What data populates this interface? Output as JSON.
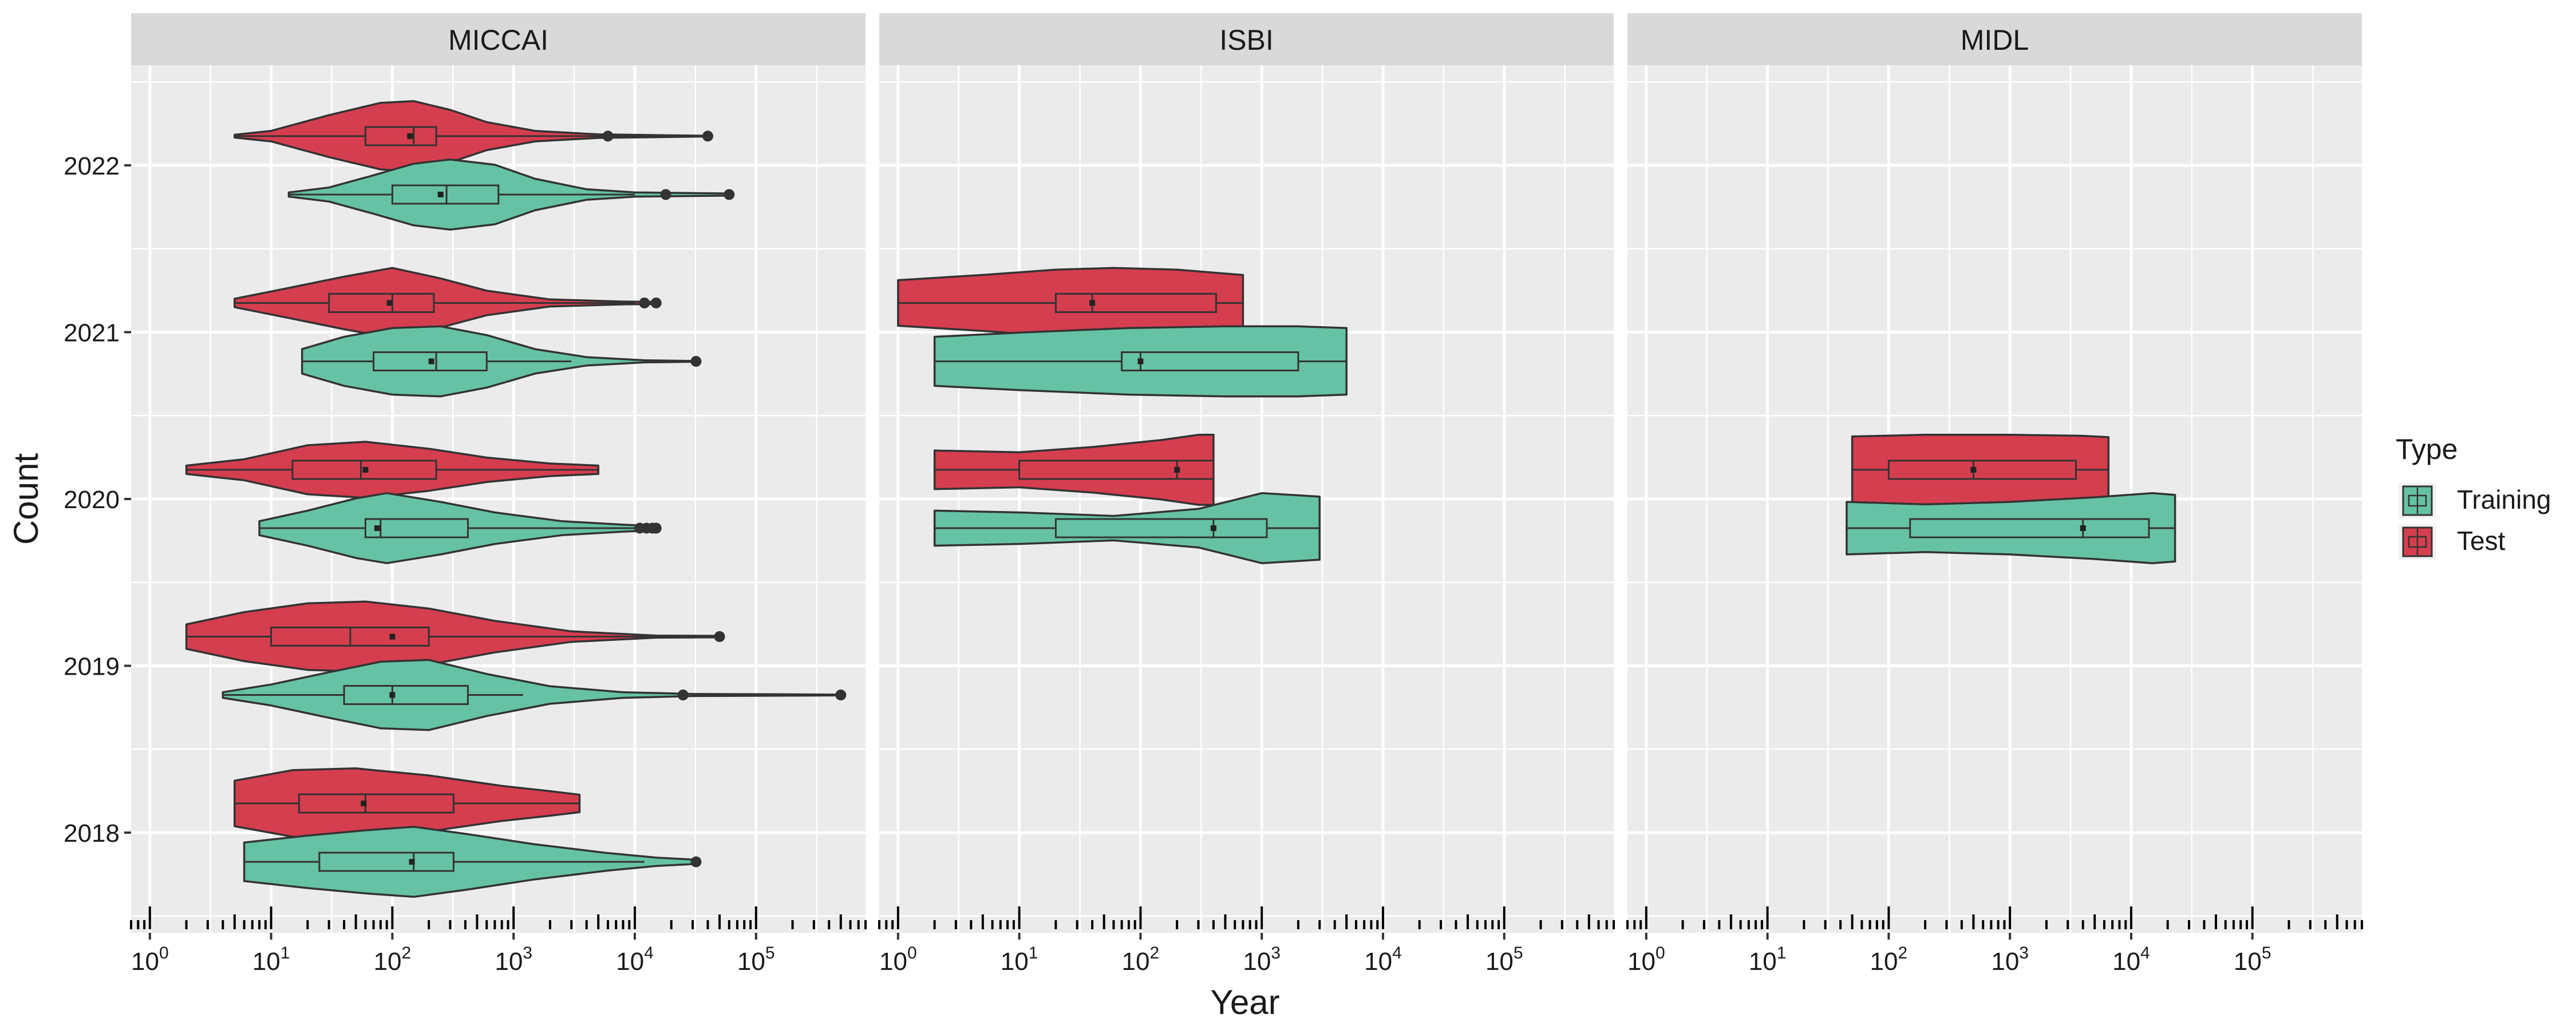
{
  "chart_data": {
    "type": "violin",
    "xlabel": "Year",
    "ylabel": "Count",
    "x_scale": "log10",
    "xlim": [
      0.7,
      800000
    ],
    "x_ticks": [
      1,
      10,
      100,
      1000,
      10000,
      100000
    ],
    "x_tick_labels": [
      {
        "base": "10",
        "exp": "0"
      },
      {
        "base": "10",
        "exp": "1"
      },
      {
        "base": "10",
        "exp": "2"
      },
      {
        "base": "10",
        "exp": "3"
      },
      {
        "base": "10",
        "exp": "4"
      },
      {
        "base": "10",
        "exp": "5"
      }
    ],
    "ylim": [
      2017.4,
      2022.6
    ],
    "y_ticks": [
      "2018",
      "2019",
      "2020",
      "2021",
      "2022"
    ],
    "grid": true,
    "legend": {
      "title": "Type",
      "placement": "right",
      "entries": [
        {
          "name": "Training",
          "color": "#66C2A5"
        },
        {
          "name": "Test",
          "color": "#D53E4F"
        }
      ]
    },
    "panels": [
      {
        "name": "MICCAI",
        "violins": [
          {
            "year": 2022,
            "type": "Test",
            "min": 5,
            "max": 6000,
            "q1": 60,
            "median": 150,
            "q3": 230,
            "mean": 140,
            "whisker_low": 5,
            "whisker_high": 6000,
            "outliers": [
              6000,
              40000
            ],
            "shape": [
              [
                5,
                0.04
              ],
              [
                10,
                0.15
              ],
              [
                30,
                0.6
              ],
              [
                80,
                0.95
              ],
              [
                150,
                1.0
              ],
              [
                300,
                0.75
              ],
              [
                600,
                0.4
              ],
              [
                1500,
                0.15
              ],
              [
                5000,
                0.05
              ],
              [
                40000,
                0.01
              ]
            ]
          },
          {
            "year": 2022,
            "type": "Training",
            "min": 14,
            "max": 60000,
            "q1": 100,
            "median": 280,
            "q3": 750,
            "mean": 250,
            "whisker_low": 14,
            "whisker_high": 10000,
            "outliers": [
              18000,
              60000
            ],
            "shape": [
              [
                14,
                0.06
              ],
              [
                30,
                0.2
              ],
              [
                70,
                0.55
              ],
              [
                150,
                0.88
              ],
              [
                300,
                1.0
              ],
              [
                700,
                0.85
              ],
              [
                1500,
                0.45
              ],
              [
                4000,
                0.15
              ],
              [
                10000,
                0.06
              ],
              [
                60000,
                0.03
              ]
            ]
          },
          {
            "year": 2021,
            "type": "Test",
            "min": 5,
            "max": 15000,
            "q1": 30,
            "median": 100,
            "q3": 220,
            "mean": 95,
            "whisker_low": 5,
            "whisker_high": 10000,
            "outliers": [
              12000,
              15000
            ],
            "shape": [
              [
                5,
                0.12
              ],
              [
                15,
                0.45
              ],
              [
                40,
                0.75
              ],
              [
                100,
                1.0
              ],
              [
                250,
                0.7
              ],
              [
                600,
                0.35
              ],
              [
                2000,
                0.1
              ],
              [
                8000,
                0.04
              ],
              [
                15000,
                0.03
              ]
            ]
          },
          {
            "year": 2021,
            "type": "Training",
            "min": 18,
            "max": 32000,
            "q1": 70,
            "median": 230,
            "q3": 600,
            "mean": 210,
            "whisker_low": 18,
            "whisker_high": 3000,
            "outliers": [
              32000
            ],
            "shape": [
              [
                18,
                0.35
              ],
              [
                40,
                0.7
              ],
              [
                100,
                0.95
              ],
              [
                250,
                1.0
              ],
              [
                600,
                0.75
              ],
              [
                1500,
                0.35
              ],
              [
                4000,
                0.12
              ],
              [
                12000,
                0.03
              ],
              [
                32000,
                0.01
              ]
            ]
          },
          {
            "year": 2020,
            "type": "Test",
            "min": 2,
            "max": 5000,
            "q1": 15,
            "median": 55,
            "q3": 230,
            "mean": 60,
            "whisker_low": 2,
            "whisker_high": 5000,
            "outliers": [],
            "shape": [
              [
                2,
                0.12
              ],
              [
                6,
                0.3
              ],
              [
                20,
                0.7
              ],
              [
                60,
                0.8
              ],
              [
                200,
                0.6
              ],
              [
                600,
                0.35
              ],
              [
                2000,
                0.18
              ],
              [
                5000,
                0.12
              ]
            ]
          },
          {
            "year": 2020,
            "type": "Training",
            "min": 8,
            "max": 15000,
            "q1": 60,
            "median": 80,
            "q3": 420,
            "mean": 75,
            "whisker_low": 8,
            "whisker_high": 10000,
            "outliers": [
              11000,
              12500,
              14000,
              15000
            ],
            "shape": [
              [
                8,
                0.2
              ],
              [
                20,
                0.5
              ],
              [
                50,
                0.85
              ],
              [
                90,
                1.0
              ],
              [
                250,
                0.75
              ],
              [
                700,
                0.45
              ],
              [
                2500,
                0.2
              ],
              [
                8000,
                0.1
              ],
              [
                15000,
                0.06
              ]
            ]
          },
          {
            "year": 2019,
            "type": "Test",
            "min": 2,
            "max": 50000,
            "q1": 10,
            "median": 45,
            "q3": 200,
            "mean": 100,
            "whisker_low": 2,
            "whisker_high": 30000,
            "outliers": [
              50000
            ],
            "shape": [
              [
                2,
                0.35
              ],
              [
                6,
                0.7
              ],
              [
                20,
                0.95
              ],
              [
                60,
                1.0
              ],
              [
                200,
                0.8
              ],
              [
                700,
                0.45
              ],
              [
                3000,
                0.15
              ],
              [
                15000,
                0.03
              ],
              [
                50000,
                0.02
              ]
            ]
          },
          {
            "year": 2019,
            "type": "Training",
            "min": 4,
            "max": 500000,
            "q1": 40,
            "median": 100,
            "q3": 420,
            "mean": 100,
            "whisker_low": 4,
            "whisker_high": 1200,
            "outliers": [
              25000,
              500000
            ],
            "shape": [
              [
                4,
                0.08
              ],
              [
                10,
                0.3
              ],
              [
                30,
                0.65
              ],
              [
                80,
                0.95
              ],
              [
                200,
                1.0
              ],
              [
                600,
                0.6
              ],
              [
                2000,
                0.25
              ],
              [
                8000,
                0.08
              ],
              [
                30000,
                0.03
              ],
              [
                150000,
                0.02
              ],
              [
                500000,
                0.01
              ]
            ]
          },
          {
            "year": 2018,
            "type": "Test",
            "min": 5,
            "max": 3500,
            "q1": 17,
            "median": 60,
            "q3": 320,
            "mean": 58,
            "whisker_low": 5,
            "whisker_high": 3500,
            "outliers": [],
            "shape": [
              [
                5,
                0.65
              ],
              [
                15,
                0.95
              ],
              [
                50,
                1.0
              ],
              [
                200,
                0.8
              ],
              [
                800,
                0.5
              ],
              [
                2000,
                0.35
              ],
              [
                3500,
                0.25
              ]
            ]
          },
          {
            "year": 2018,
            "type": "Training",
            "min": 6,
            "max": 32000,
            "q1": 25,
            "median": 150,
            "q3": 320,
            "mean": 145,
            "whisker_low": 6,
            "whisker_high": 12000,
            "outliers": [
              32000
            ],
            "shape": [
              [
                6,
                0.55
              ],
              [
                20,
                0.75
              ],
              [
                60,
                0.9
              ],
              [
                150,
                1.0
              ],
              [
                400,
                0.8
              ],
              [
                1500,
                0.5
              ],
              [
                6000,
                0.25
              ],
              [
                15000,
                0.12
              ],
              [
                32000,
                0.06
              ]
            ]
          }
        ]
      },
      {
        "name": "ISBI",
        "violins": [
          {
            "year": 2021,
            "type": "Test",
            "min": 1,
            "max": 700,
            "q1": 20,
            "median": 40,
            "q3": 420,
            "mean": 40,
            "whisker_low": 1,
            "whisker_high": 700,
            "outliers": [],
            "shape": [
              [
                1,
                0.65
              ],
              [
                5,
                0.8
              ],
              [
                20,
                0.95
              ],
              [
                60,
                1.0
              ],
              [
                200,
                0.95
              ],
              [
                700,
                0.8
              ]
            ]
          },
          {
            "year": 2021,
            "type": "Training",
            "min": 2,
            "max": 5000,
            "q1": 70,
            "median": 100,
            "q3": 2000,
            "mean": 100,
            "whisker_low": 2,
            "whisker_high": 5000,
            "outliers": [],
            "shape": [
              [
                2,
                0.7
              ],
              [
                10,
                0.82
              ],
              [
                80,
                0.95
              ],
              [
                500,
                1.0
              ],
              [
                2000,
                1.0
              ],
              [
                5000,
                0.95
              ]
            ]
          },
          {
            "year": 2020,
            "type": "Test",
            "min": 2,
            "max": 400,
            "q1": 10,
            "median": 200,
            "q3": 400,
            "mean": 200,
            "whisker_low": 2,
            "whisker_high": 400,
            "outliers": [],
            "shape": [
              [
                2,
                0.55
              ],
              [
                10,
                0.5
              ],
              [
                40,
                0.65
              ],
              [
                150,
                0.85
              ],
              [
                300,
                1.0
              ],
              [
                400,
                1.0
              ]
            ]
          },
          {
            "year": 2020,
            "type": "Training",
            "min": 2,
            "max": 3000,
            "q1": 20,
            "median": 400,
            "q3": 1100,
            "mean": 400,
            "whisker_low": 2,
            "whisker_high": 3000,
            "outliers": [],
            "shape": [
              [
                2,
                0.5
              ],
              [
                10,
                0.45
              ],
              [
                60,
                0.35
              ],
              [
                300,
                0.55
              ],
              [
                1000,
                1.0
              ],
              [
                3000,
                0.9
              ]
            ]
          }
        ]
      },
      {
        "name": "MIDL",
        "violins": [
          {
            "year": 2020,
            "type": "Test",
            "min": 50,
            "max": 6500,
            "q1": 100,
            "median": 500,
            "q3": 3500,
            "mean": 500,
            "whisker_low": 50,
            "whisker_high": 6500,
            "outliers": [],
            "shape": [
              [
                50,
                0.95
              ],
              [
                200,
                1.0
              ],
              [
                1000,
                1.0
              ],
              [
                4000,
                0.97
              ],
              [
                6500,
                0.93
              ]
            ]
          },
          {
            "year": 2020,
            "type": "Training",
            "min": 45,
            "max": 23000,
            "q1": 150,
            "median": 4000,
            "q3": 14000,
            "mean": 4000,
            "whisker_low": 45,
            "whisker_high": 23000,
            "outliers": [],
            "shape": [
              [
                45,
                0.75
              ],
              [
                200,
                0.68
              ],
              [
                1000,
                0.75
              ],
              [
                5000,
                0.88
              ],
              [
                15000,
                1.0
              ],
              [
                23000,
                0.95
              ]
            ]
          }
        ]
      }
    ]
  }
}
